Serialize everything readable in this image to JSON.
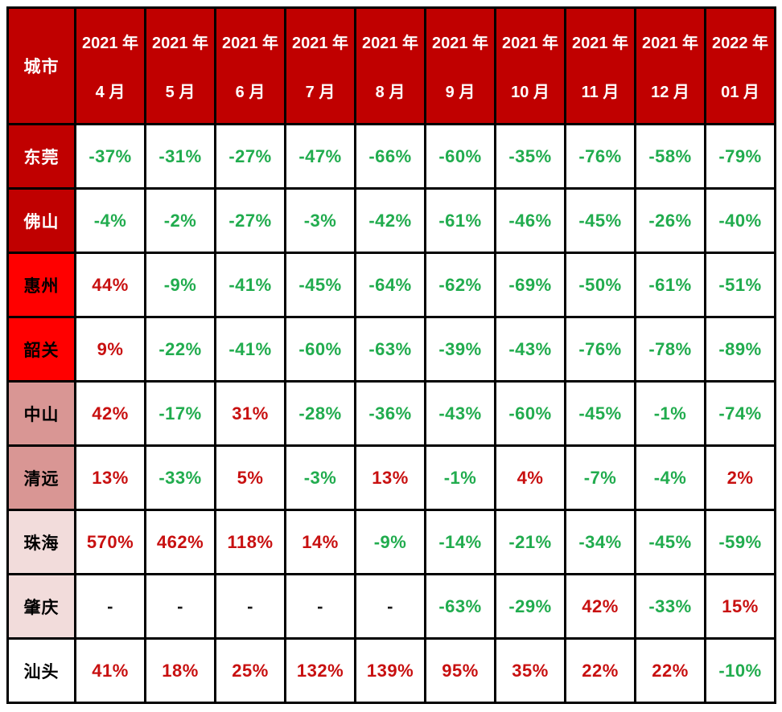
{
  "colors": {
    "header_bg": "#C00000",
    "header_text": "#FFFFFF",
    "border": "#000000",
    "positive_text": "#C81010",
    "negative_text": "#21AC4E",
    "dash_text": "#1A1A1A",
    "city_dark_red_bg": "#C00000",
    "city_bright_red_bg": "#FF0000",
    "city_pink_bg": "#D99694",
    "city_light_pink_bg": "#F2DCDB",
    "city_white_bg": "#FFFFFF"
  },
  "table": {
    "corner_header": "城市",
    "dash": "-",
    "column_headers": [
      {
        "year": "2021 年",
        "month": "4 月"
      },
      {
        "year": "2021 年",
        "month": "5 月"
      },
      {
        "year": "2021 年",
        "month": "6 月"
      },
      {
        "year": "2021 年",
        "month": "7 月"
      },
      {
        "year": "2021 年",
        "month": "8 月"
      },
      {
        "year": "2021 年",
        "month": "9 月"
      },
      {
        "year": "2021 年",
        "month": "10 月"
      },
      {
        "year": "2021 年",
        "month": "11 月"
      },
      {
        "year": "2021 年",
        "month": "12 月"
      },
      {
        "year": "2022 年",
        "month": "01 月"
      }
    ],
    "rows": [
      {
        "city": "东莞",
        "city_bg": "#C00000",
        "city_text": "#FFFFFF",
        "values": [
          "-37%",
          "-31%",
          "-27%",
          "-47%",
          "-66%",
          "-60%",
          "-35%",
          "-76%",
          "-58%",
          "-79%"
        ]
      },
      {
        "city": "佛山",
        "city_bg": "#C00000",
        "city_text": "#FFFFFF",
        "values": [
          "-4%",
          "-2%",
          "-27%",
          "-3%",
          "-42%",
          "-61%",
          "-46%",
          "-45%",
          "-26%",
          "-40%"
        ]
      },
      {
        "city": "惠州",
        "city_bg": "#FF0000",
        "city_text": "#000000",
        "values": [
          "44%",
          "-9%",
          "-41%",
          "-45%",
          "-64%",
          "-62%",
          "-69%",
          "-50%",
          "-61%",
          "-51%"
        ]
      },
      {
        "city": "韶关",
        "city_bg": "#FF0000",
        "city_text": "#000000",
        "values": [
          "9%",
          "-22%",
          "-41%",
          "-60%",
          "-63%",
          "-39%",
          "-43%",
          "-76%",
          "-78%",
          "-89%"
        ]
      },
      {
        "city": "中山",
        "city_bg": "#D99694",
        "city_text": "#000000",
        "values": [
          "42%",
          "-17%",
          "31%",
          "-28%",
          "-36%",
          "-43%",
          "-60%",
          "-45%",
          "-1%",
          "-74%"
        ]
      },
      {
        "city": "清远",
        "city_bg": "#D99694",
        "city_text": "#000000",
        "values": [
          "13%",
          "-33%",
          "5%",
          "-3%",
          "13%",
          "-1%",
          "4%",
          "-7%",
          "-4%",
          "2%"
        ]
      },
      {
        "city": "珠海",
        "city_bg": "#F2DCDB",
        "city_text": "#000000",
        "values": [
          "570%",
          "462%",
          "118%",
          "14%",
          "-9%",
          "-14%",
          "-21%",
          "-34%",
          "-45%",
          "-59%"
        ]
      },
      {
        "city": "肇庆",
        "city_bg": "#F2DCDB",
        "city_text": "#000000",
        "values": [
          "-",
          "-",
          "-",
          "-",
          "-",
          "-63%",
          "-29%",
          "42%",
          "-33%",
          "15%"
        ]
      },
      {
        "city": "汕头",
        "city_bg": "#FFFFFF",
        "city_text": "#000000",
        "values": [
          "41%",
          "18%",
          "25%",
          "132%",
          "139%",
          "95%",
          "35%",
          "22%",
          "22%",
          "-10%"
        ]
      }
    ]
  },
  "chart_data": {
    "type": "table",
    "title": "",
    "row_header_label": "城市",
    "columns": [
      "2021年4月",
      "2021年5月",
      "2021年6月",
      "2021年7月",
      "2021年8月",
      "2021年9月",
      "2021年10月",
      "2021年11月",
      "2021年12月",
      "2022年01月"
    ],
    "unit": "percent",
    "series": [
      {
        "name": "东莞",
        "values": [
          -37,
          -31,
          -27,
          -47,
          -66,
          -60,
          -35,
          -76,
          -58,
          -79
        ]
      },
      {
        "name": "佛山",
        "values": [
          -4,
          -2,
          -27,
          -3,
          -42,
          -61,
          -46,
          -45,
          -26,
          -40
        ]
      },
      {
        "name": "惠州",
        "values": [
          44,
          -9,
          -41,
          -45,
          -64,
          -62,
          -69,
          -50,
          -61,
          -51
        ]
      },
      {
        "name": "韶关",
        "values": [
          9,
          -22,
          -41,
          -60,
          -63,
          -39,
          -43,
          -76,
          -78,
          -89
        ]
      },
      {
        "name": "中山",
        "values": [
          42,
          -17,
          31,
          -28,
          -36,
          -43,
          -60,
          -45,
          -1,
          -74
        ]
      },
      {
        "name": "清远",
        "values": [
          13,
          -33,
          5,
          -3,
          13,
          -1,
          4,
          -7,
          -4,
          2
        ]
      },
      {
        "name": "珠海",
        "values": [
          570,
          462,
          118,
          14,
          -9,
          -14,
          -21,
          -34,
          -45,
          -59
        ]
      },
      {
        "name": "肇庆",
        "values": [
          null,
          null,
          null,
          null,
          null,
          -63,
          -29,
          42,
          -33,
          15
        ]
      },
      {
        "name": "汕头",
        "values": [
          41,
          18,
          25,
          132,
          139,
          95,
          35,
          22,
          22,
          -10
        ]
      }
    ],
    "value_color_rule": {
      "positive": "red",
      "negative": "green",
      "missing": "dash"
    }
  }
}
